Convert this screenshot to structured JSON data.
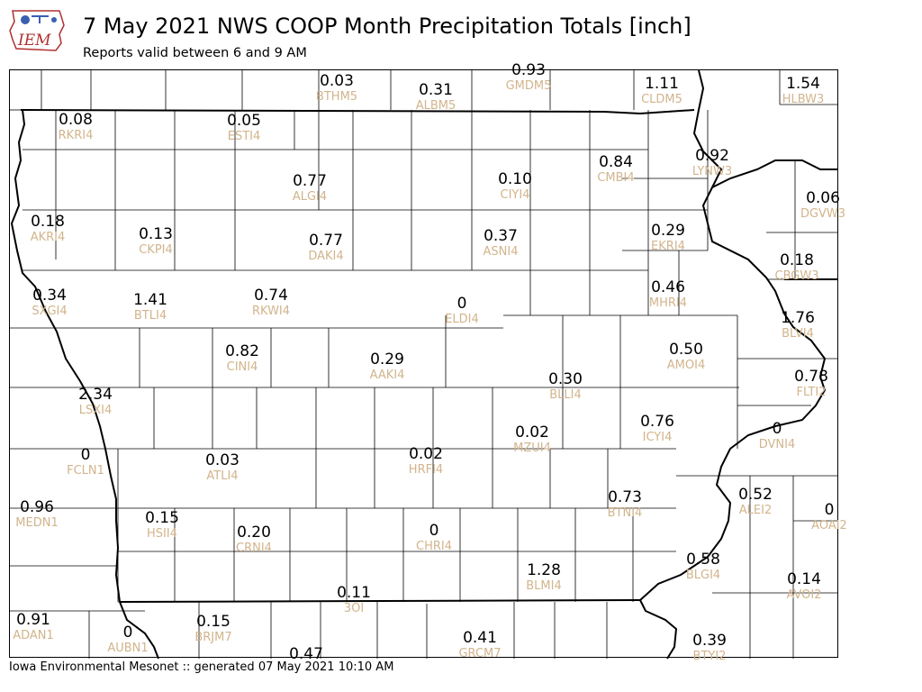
{
  "header": {
    "logo_text": "IEM",
    "title": "7 May 2021 NWS COOP Month Precipitation Totals [inch]",
    "subtitle": "Reports valid between 6 and 9 AM"
  },
  "footer": {
    "text": "Iowa Environmental Mesonet :: generated 07 May 2021 10:10 AM"
  },
  "map": {
    "units": "inch",
    "label_color": "#d2b48c",
    "value_color": "#000000",
    "stations": [
      {
        "id": "BTHM5",
        "value": "0.03"
      },
      {
        "id": "ALBM5",
        "value": "0.31"
      },
      {
        "id": "GMDM5",
        "value": "0.93"
      },
      {
        "id": "CLDM5",
        "value": "1.11"
      },
      {
        "id": "HLBW3",
        "value": "1.54"
      },
      {
        "id": "RKRI4",
        "value": "0.08"
      },
      {
        "id": "ESTI4",
        "value": "0.05"
      },
      {
        "id": "LYNW3",
        "value": "0.92"
      },
      {
        "id": "CMBI4",
        "value": "0.84"
      },
      {
        "id": "ALGI4",
        "value": "0.77"
      },
      {
        "id": "CIYI4",
        "value": "0.10"
      },
      {
        "id": "DGVW3",
        "value": "0.06"
      },
      {
        "id": "AKRI4",
        "value": "0.18"
      },
      {
        "id": "CKPI4",
        "value": "0.13"
      },
      {
        "id": "DAKI4",
        "value": "0.77"
      },
      {
        "id": "ASNI4",
        "value": "0.37"
      },
      {
        "id": "EKRI4",
        "value": "0.29"
      },
      {
        "id": "CBGW3",
        "value": "0.18"
      },
      {
        "id": "SXGI4",
        "value": "0.34"
      },
      {
        "id": "BTLI4",
        "value": "1.41"
      },
      {
        "id": "RKWI4",
        "value": "0.74"
      },
      {
        "id": "ELDI4",
        "value": "0"
      },
      {
        "id": "MHRI4",
        "value": "0.46"
      },
      {
        "id": "BLVI4",
        "value": "1.76"
      },
      {
        "id": "CINI4",
        "value": "0.82"
      },
      {
        "id": "AAKI4",
        "value": "0.29"
      },
      {
        "id": "AMOI4",
        "value": "0.50"
      },
      {
        "id": "BLLI4",
        "value": "0.30"
      },
      {
        "id": "FLTI2",
        "value": "0.78"
      },
      {
        "id": "LSXI4",
        "value": "2.34"
      },
      {
        "id": "ICYI4",
        "value": "0.76"
      },
      {
        "id": "DVNI4",
        "value": "0"
      },
      {
        "id": "FCLN1",
        "value": "0"
      },
      {
        "id": "ATLI4",
        "value": "0.03"
      },
      {
        "id": "HRFI4",
        "value": "0.02"
      },
      {
        "id": "MZUI4",
        "value": "0.02"
      },
      {
        "id": "MEDN1",
        "value": "0.96"
      },
      {
        "id": "HSII4",
        "value": "0.15"
      },
      {
        "id": "CRNI4",
        "value": "0.20"
      },
      {
        "id": "CHRI4",
        "value": "0"
      },
      {
        "id": "BTNI4",
        "value": "0.73"
      },
      {
        "id": "ALEI2",
        "value": "0.52"
      },
      {
        "id": "AOAI2",
        "value": "0"
      },
      {
        "id": "BLMI4",
        "value": "1.28"
      },
      {
        "id": "BLGI4",
        "value": "0.58"
      },
      {
        "id": "AVOI2",
        "value": "0.14"
      },
      {
        "id": "3OI",
        "value": "0.11"
      },
      {
        "id": "ADAN1",
        "value": "0.91"
      },
      {
        "id": "AUBN1",
        "value": "0"
      },
      {
        "id": "BRJM7",
        "value": "0.15"
      },
      {
        "id": "GRCM7",
        "value": "0.41"
      },
      {
        "id": "BTYI2",
        "value": "0.39"
      },
      {
        "id": "",
        "value": "0.47"
      }
    ]
  }
}
